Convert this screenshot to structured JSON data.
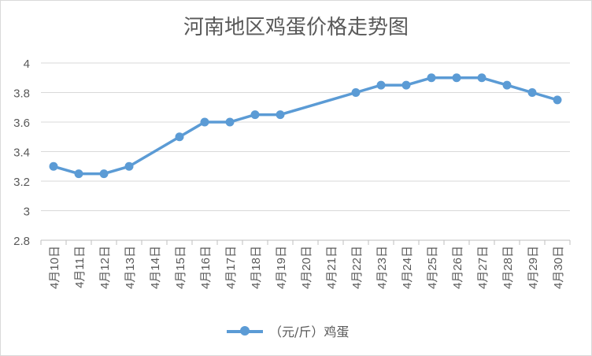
{
  "chart_data": {
    "type": "line",
    "title": "河南地区鸡蛋价格走势图",
    "categories": [
      "4月10日",
      "4月11日",
      "4月12日",
      "4月13日",
      "4月14日",
      "4月15日",
      "4月16日",
      "4月17日",
      "4月18日",
      "4月19日",
      "4月20日",
      "4月21日",
      "4月22日",
      "4月23日",
      "4月24日",
      "4月25日",
      "4月26日",
      "4月27日",
      "4月28日",
      "4月29日",
      "4月30日"
    ],
    "series": [
      {
        "name": "（元/斤）鸡蛋",
        "color": "#5b9bd5",
        "values": [
          3.3,
          3.25,
          3.25,
          3.3,
          null,
          3.5,
          3.6,
          3.6,
          3.65,
          3.65,
          null,
          null,
          3.8,
          3.85,
          3.85,
          3.9,
          3.9,
          3.9,
          3.85,
          3.8,
          3.75
        ]
      }
    ],
    "ylim": [
      2.8,
      4
    ],
    "yticks": [
      "2.8",
      "3",
      "3.2",
      "3.4",
      "3.6",
      "3.8",
      "4"
    ],
    "grid": true,
    "legend_position": "bottom"
  }
}
